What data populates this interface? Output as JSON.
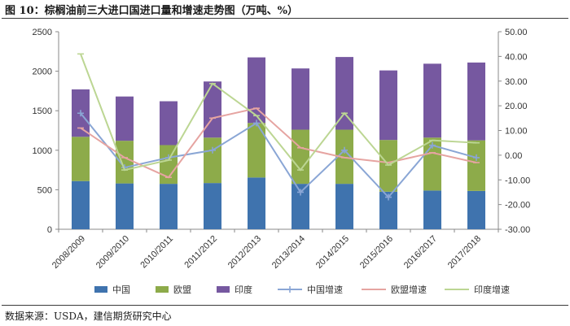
{
  "title": "图 10：棕榈油前三大进口国进口量和增速走势图（万吨、%）",
  "source": "数据来源：USDA，建信期货研究中心",
  "colors": {
    "china_bar": "#3f73ae",
    "eu_bar": "#8dab4a",
    "india_bar": "#7658a0",
    "china_line": "#8aa6d5",
    "eu_line": "#e6a4a1",
    "india_line": "#bcd693"
  },
  "chart_data": {
    "type": "bar",
    "stacked": true,
    "categories": [
      "2008/2009",
      "2009/2010",
      "2010/2011",
      "2011/2012",
      "2012/2013",
      "2013/2014",
      "2014/2015",
      "2015/2016",
      "2016/2017",
      "2017/2018"
    ],
    "series": [
      {
        "name": "中国",
        "type": "bar",
        "axis": "left",
        "values": [
          610,
          580,
          575,
          585,
          655,
          575,
          575,
          475,
          490,
          485
        ]
      },
      {
        "name": "欧盟",
        "type": "bar",
        "axis": "left",
        "values": [
          560,
          540,
          490,
          575,
          690,
          685,
          685,
          655,
          670,
          640
        ]
      },
      {
        "name": "印度",
        "type": "bar",
        "axis": "left",
        "values": [
          600,
          560,
          555,
          710,
          830,
          775,
          920,
          880,
          935,
          985
        ]
      },
      {
        "name": "中国增速",
        "type": "line",
        "axis": "right",
        "values": [
          17,
          -5,
          -1,
          2,
          13,
          -15,
          2,
          -17,
          4,
          -1
        ]
      },
      {
        "name": "欧盟增速",
        "type": "line",
        "axis": "right",
        "values": [
          11,
          -1,
          -9,
          15,
          19,
          3,
          -1,
          -3,
          1,
          -3
        ]
      },
      {
        "name": "印度增速",
        "type": "line",
        "axis": "right",
        "values": [
          41,
          -6,
          -2,
          29,
          16,
          -6,
          17,
          -4,
          6,
          5
        ]
      }
    ],
    "y_left": {
      "min": 0,
      "max": 2500,
      "ticks": [
        "0",
        "500",
        "1000",
        "1500",
        "2000",
        "2500"
      ]
    },
    "y_right": {
      "min": -30,
      "max": 50,
      "ticks": [
        "-30.00",
        "-20.00",
        "-10.00",
        "0.00",
        "10.00",
        "20.00",
        "30.00",
        "40.00",
        "50.00"
      ]
    },
    "grid": false,
    "legend_position": "bottom"
  }
}
